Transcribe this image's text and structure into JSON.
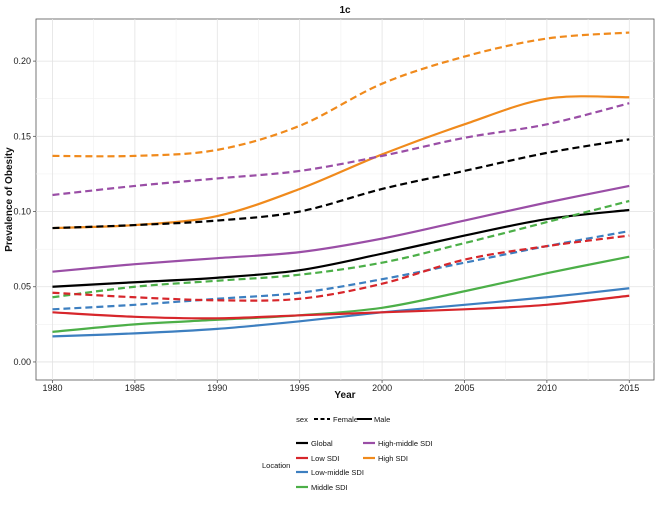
{
  "chart_data": {
    "type": "line",
    "title": "1c",
    "xlabel": "Year",
    "ylabel": "Prevalence of Obesity",
    "xlim": [
      1979,
      2016.5
    ],
    "ylim": [
      -0.012,
      0.228
    ],
    "xticks": [
      1980,
      1985,
      1990,
      1995,
      2000,
      2005,
      2010,
      2015
    ],
    "yticks": [
      0.0,
      0.05,
      0.1,
      0.15,
      0.2
    ],
    "ytick_labels": [
      "0.00",
      "0.05",
      "0.10",
      "0.15",
      "0.20"
    ],
    "grid": true,
    "legend_sex": {
      "title": "sex",
      "items": [
        {
          "label": "Female",
          "dash": "dashed"
        },
        {
          "label": "Male",
          "dash": "solid"
        }
      ]
    },
    "legend_location": {
      "title": "Location",
      "items": [
        {
          "label": "Global",
          "color": "#000000"
        },
        {
          "label": "Low SDI",
          "color": "#d7262b"
        },
        {
          "label": "Low-middle SDI",
          "color": "#3d7fc0"
        },
        {
          "label": "Middle SDI",
          "color": "#4caf48"
        },
        {
          "label": "High-middle SDI",
          "color": "#9a4ea6"
        },
        {
          "label": "High SDI",
          "color": "#f08a1c"
        }
      ]
    },
    "x": [
      1980,
      1985,
      1990,
      1995,
      2000,
      2005,
      2010,
      2015
    ],
    "series": [
      {
        "location": "High SDI",
        "sex": "Female",
        "color": "#f08a1c",
        "values": [
          0.137,
          0.137,
          0.141,
          0.157,
          0.185,
          0.203,
          0.215,
          0.219
        ]
      },
      {
        "location": "High SDI",
        "sex": "Male",
        "color": "#f08a1c",
        "values": [
          0.089,
          0.091,
          0.097,
          0.115,
          0.138,
          0.158,
          0.175,
          0.176
        ]
      },
      {
        "location": "High-middle SDI",
        "sex": "Female",
        "color": "#9a4ea6",
        "values": [
          0.111,
          0.117,
          0.122,
          0.127,
          0.137,
          0.149,
          0.158,
          0.172
        ]
      },
      {
        "location": "High-middle SDI",
        "sex": "Male",
        "color": "#9a4ea6",
        "values": [
          0.06,
          0.065,
          0.069,
          0.073,
          0.082,
          0.094,
          0.106,
          0.117
        ]
      },
      {
        "location": "Global",
        "sex": "Female",
        "color": "#000000",
        "values": [
          0.089,
          0.091,
          0.094,
          0.1,
          0.115,
          0.127,
          0.139,
          0.148
        ]
      },
      {
        "location": "Global",
        "sex": "Male",
        "color": "#000000",
        "values": [
          0.05,
          0.053,
          0.056,
          0.061,
          0.072,
          0.084,
          0.095,
          0.101
        ]
      },
      {
        "location": "Middle SDI",
        "sex": "Female",
        "color": "#4caf48",
        "values": [
          0.043,
          0.05,
          0.054,
          0.058,
          0.066,
          0.079,
          0.093,
          0.107
        ]
      },
      {
        "location": "Middle SDI",
        "sex": "Male",
        "color": "#4caf48",
        "values": [
          0.02,
          0.025,
          0.028,
          0.031,
          0.036,
          0.047,
          0.059,
          0.07
        ]
      },
      {
        "location": "Low-middle SDI",
        "sex": "Female",
        "color": "#3d7fc0",
        "values": [
          0.035,
          0.038,
          0.042,
          0.046,
          0.055,
          0.066,
          0.077,
          0.087
        ]
      },
      {
        "location": "Low-middle SDI",
        "sex": "Male",
        "color": "#3d7fc0",
        "values": [
          0.017,
          0.019,
          0.022,
          0.027,
          0.033,
          0.038,
          0.043,
          0.049
        ]
      },
      {
        "location": "Low SDI",
        "sex": "Female",
        "color": "#d7262b",
        "values": [
          0.046,
          0.043,
          0.041,
          0.042,
          0.052,
          0.068,
          0.077,
          0.084
        ]
      },
      {
        "location": "Low SDI",
        "sex": "Male",
        "color": "#d7262b",
        "values": [
          0.033,
          0.03,
          0.029,
          0.031,
          0.033,
          0.035,
          0.038,
          0.044
        ]
      }
    ]
  }
}
